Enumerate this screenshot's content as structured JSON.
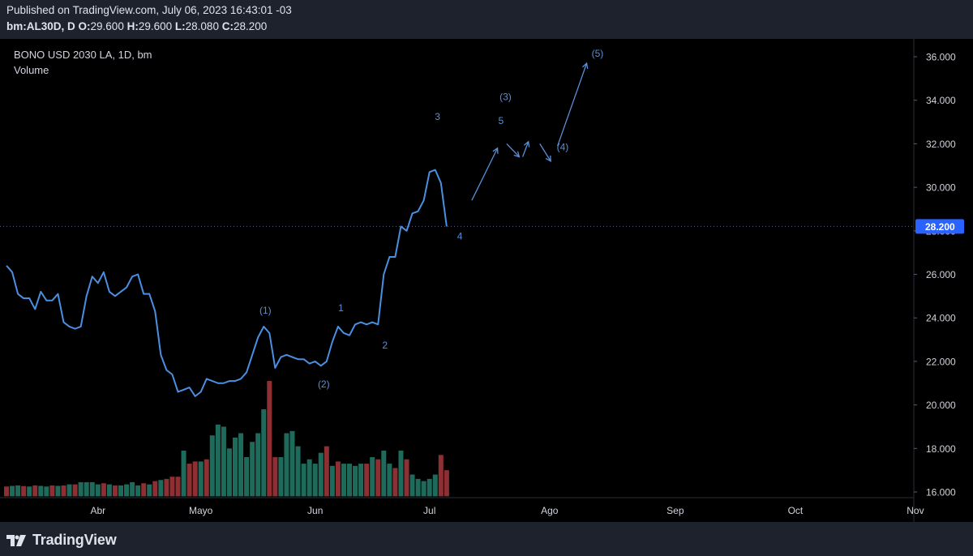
{
  "header": {
    "published": "Published on TradingView.com, July 06, 2023 16:43:01 -03",
    "symbol_prefix": "bm:AL30D, D",
    "ohlc": [
      {
        "label": "O:",
        "value": "29.600"
      },
      {
        "label": "H:",
        "value": "29.600"
      },
      {
        "label": "L:",
        "value": "28.080"
      },
      {
        "label": "C:",
        "value": "28.200"
      }
    ]
  },
  "legend": {
    "title": "BONO USD 2030 LA, 1D, bm",
    "volume": "Volume"
  },
  "footer": {
    "logo_text": "TradingView"
  },
  "colors": {
    "line": "#4a90e2",
    "vol_up": "#1f6b5b",
    "vol_down": "#8e2f33",
    "last_price_bg": "#2962ff",
    "annot": "#5b8fd9"
  },
  "chart_data": {
    "type": "line",
    "title": "BONO USD 2030 LA, 1D, bm",
    "ylim": [
      15.8,
      36.6
    ],
    "yticks": [
      16,
      18,
      20,
      22,
      24,
      26,
      28,
      30,
      32,
      34,
      36
    ],
    "ytick_labels": [
      "16.000",
      "18.000",
      "20.000",
      "22.000",
      "24.000",
      "26.000",
      "28.000",
      "30.000",
      "32.000",
      "34.000",
      "36.000"
    ],
    "x_range": [
      0,
      159
    ],
    "xticks": [
      {
        "label": "Abr",
        "x": 16
      },
      {
        "label": "Mayo",
        "x": 34
      },
      {
        "label": "Jun",
        "x": 54
      },
      {
        "label": "Jul",
        "x": 74
      },
      {
        "label": "Ago",
        "x": 95
      },
      {
        "label": "Sep",
        "x": 117
      },
      {
        "label": "Oct",
        "x": 138
      },
      {
        "label": "Nov",
        "x": 159
      }
    ],
    "last_price": "28.200",
    "last_value": 28.2,
    "price": [
      26.4,
      26.1,
      25.1,
      24.9,
      24.9,
      24.4,
      25.2,
      24.8,
      24.8,
      25.1,
      23.8,
      23.6,
      23.5,
      23.6,
      25.0,
      25.9,
      25.6,
      26.1,
      25.2,
      25.0,
      25.2,
      25.4,
      25.9,
      26.0,
      25.1,
      25.1,
      24.3,
      22.3,
      21.6,
      21.4,
      20.6,
      20.7,
      20.8,
      20.4,
      20.6,
      21.2,
      21.1,
      21.0,
      21.0,
      21.1,
      21.1,
      21.2,
      21.5,
      22.3,
      23.1,
      23.6,
      23.3,
      21.7,
      22.2,
      22.3,
      22.2,
      22.1,
      22.1,
      21.9,
      22.0,
      21.8,
      22.0,
      22.9,
      23.6,
      23.3,
      23.2,
      23.7,
      23.8,
      23.7,
      23.8,
      23.7,
      26.0,
      26.8,
      26.8,
      28.2,
      28.0,
      28.8,
      28.9,
      29.4,
      30.7,
      30.8,
      30.2,
      28.2
    ],
    "volume": [
      {
        "v": 16.25,
        "up": false
      },
      {
        "v": 16.28,
        "up": true
      },
      {
        "v": 16.3,
        "up": true
      },
      {
        "v": 16.27,
        "up": false
      },
      {
        "v": 16.25,
        "up": true
      },
      {
        "v": 16.3,
        "up": false
      },
      {
        "v": 16.28,
        "up": true
      },
      {
        "v": 16.25,
        "up": true
      },
      {
        "v": 16.3,
        "up": false
      },
      {
        "v": 16.28,
        "up": true
      },
      {
        "v": 16.3,
        "up": false
      },
      {
        "v": 16.35,
        "up": true
      },
      {
        "v": 16.35,
        "up": false
      },
      {
        "v": 16.45,
        "up": true
      },
      {
        "v": 16.45,
        "up": true
      },
      {
        "v": 16.45,
        "up": true
      },
      {
        "v": 16.35,
        "up": true
      },
      {
        "v": 16.4,
        "up": false
      },
      {
        "v": 16.35,
        "up": true
      },
      {
        "v": 16.3,
        "up": false
      },
      {
        "v": 16.3,
        "up": true
      },
      {
        "v": 16.35,
        "up": true
      },
      {
        "v": 16.45,
        "up": true
      },
      {
        "v": 16.3,
        "up": true
      },
      {
        "v": 16.4,
        "up": false
      },
      {
        "v": 16.35,
        "up": true
      },
      {
        "v": 16.5,
        "up": false
      },
      {
        "v": 16.55,
        "up": true
      },
      {
        "v": 16.6,
        "up": false
      },
      {
        "v": 16.7,
        "up": false
      },
      {
        "v": 16.7,
        "up": false
      },
      {
        "v": 17.9,
        "up": true
      },
      {
        "v": 17.3,
        "up": false
      },
      {
        "v": 17.4,
        "up": false
      },
      {
        "v": 17.4,
        "up": true
      },
      {
        "v": 17.5,
        "up": false
      },
      {
        "v": 18.6,
        "up": true
      },
      {
        "v": 19.1,
        "up": true
      },
      {
        "v": 19.0,
        "up": true
      },
      {
        "v": 18.0,
        "up": true
      },
      {
        "v": 18.5,
        "up": true
      },
      {
        "v": 18.7,
        "up": true
      },
      {
        "v": 17.6,
        "up": true
      },
      {
        "v": 18.3,
        "up": true
      },
      {
        "v": 18.7,
        "up": true
      },
      {
        "v": 19.8,
        "up": true
      },
      {
        "v": 21.1,
        "up": false
      },
      {
        "v": 17.6,
        "up": false
      },
      {
        "v": 17.6,
        "up": true
      },
      {
        "v": 18.7,
        "up": true
      },
      {
        "v": 18.8,
        "up": true
      },
      {
        "v": 18.1,
        "up": true
      },
      {
        "v": 17.3,
        "up": true
      },
      {
        "v": 17.5,
        "up": true
      },
      {
        "v": 17.3,
        "up": true
      },
      {
        "v": 17.8,
        "up": true
      },
      {
        "v": 18.1,
        "up": false
      },
      {
        "v": 17.2,
        "up": true
      },
      {
        "v": 17.4,
        "up": false
      },
      {
        "v": 17.3,
        "up": true
      },
      {
        "v": 17.3,
        "up": true
      },
      {
        "v": 17.2,
        "up": true
      },
      {
        "v": 17.3,
        "up": true
      },
      {
        "v": 17.3,
        "up": false
      },
      {
        "v": 17.6,
        "up": true
      },
      {
        "v": 17.5,
        "up": false
      },
      {
        "v": 17.9,
        "up": true
      },
      {
        "v": 17.3,
        "up": true
      },
      {
        "v": 17.1,
        "up": false
      },
      {
        "v": 17.9,
        "up": true
      },
      {
        "v": 17.5,
        "up": false
      },
      {
        "v": 16.8,
        "up": true
      },
      {
        "v": 16.6,
        "up": true
      },
      {
        "v": 16.5,
        "up": true
      },
      {
        "v": 16.6,
        "up": true
      },
      {
        "v": 16.8,
        "up": true
      },
      {
        "v": 17.7,
        "up": false
      },
      {
        "v": 17.0,
        "up": false
      }
    ],
    "volume_floor": 15.8,
    "annotations": [
      {
        "text": "(1)",
        "x": 45.3,
        "y": 24.2
      },
      {
        "text": "(2)",
        "x": 55.5,
        "y": 20.8
      },
      {
        "text": "1",
        "x": 58.5,
        "y": 24.3
      },
      {
        "text": "2",
        "x": 66.2,
        "y": 22.6
      },
      {
        "text": "3",
        "x": 75.4,
        "y": 33.1
      },
      {
        "text": "4",
        "x": 79.3,
        "y": 27.6
      },
      {
        "text": "5",
        "x": 86.5,
        "y": 32.9
      },
      {
        "text": "(3)",
        "x": 87.3,
        "y": 34.0
      },
      {
        "text": "(4)",
        "x": 97.3,
        "y": 31.7
      },
      {
        "text": "(5)",
        "x": 103.4,
        "y": 36.0
      }
    ],
    "arrows": [
      {
        "x1": 81.4,
        "y1": 29.4,
        "x2": 85.9,
        "y2": 31.8
      },
      {
        "x1": 87.5,
        "y1": 32.0,
        "x2": 89.7,
        "y2": 31.4
      },
      {
        "x1": 90.3,
        "y1": 31.4,
        "x2": 91.3,
        "y2": 32.1
      },
      {
        "x1": 93.3,
        "y1": 32.0,
        "x2": 95.2,
        "y2": 31.2
      },
      {
        "x1": 96.4,
        "y1": 31.9,
        "x2": 101.5,
        "y2": 35.7
      }
    ]
  }
}
